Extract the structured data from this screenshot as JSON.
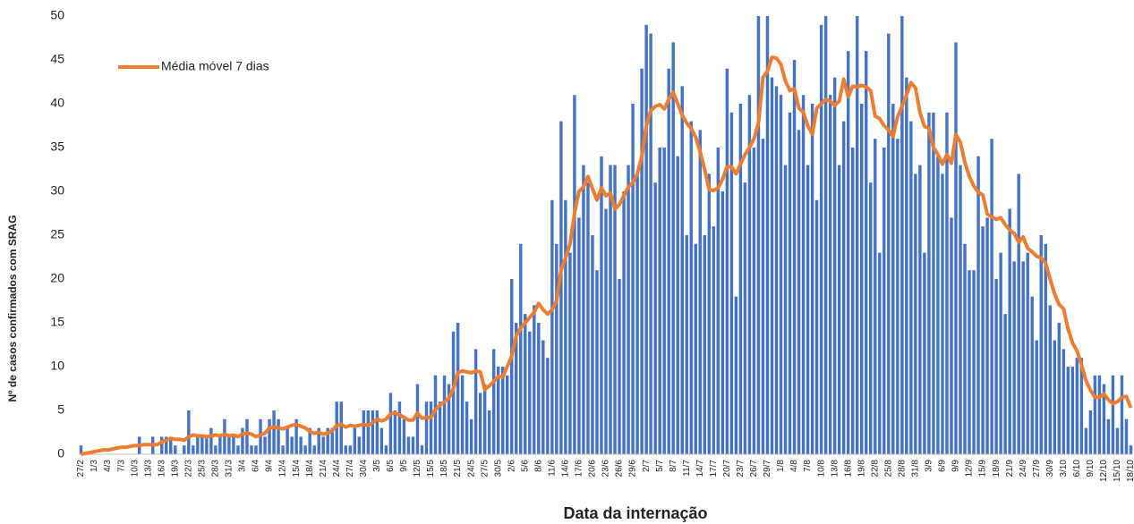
{
  "chart_data": {
    "type": "bar",
    "y_label": "Nº de casos confirmados com SRAG",
    "x_label": "Data da internação",
    "color": "#4472c4",
    "ylim": [
      0,
      50
    ],
    "yticks": [
      0,
      5,
      10,
      15,
      20,
      25,
      30,
      35,
      40,
      45,
      50
    ],
    "categories": [
      "27/2",
      null,
      null,
      "1/3",
      null,
      null,
      "4/3",
      null,
      null,
      "7/3",
      null,
      null,
      "10/3",
      null,
      null,
      "13/3",
      null,
      null,
      "16/3",
      null,
      null,
      "19/3",
      null,
      null,
      "22/3",
      null,
      null,
      "25/3",
      null,
      null,
      "28/3",
      null,
      null,
      "31/3",
      null,
      null,
      "3/4",
      null,
      null,
      "6/4",
      null,
      null,
      "9/4",
      null,
      null,
      "12/4",
      null,
      null,
      "15/4",
      null,
      null,
      "18/4",
      null,
      null,
      "21/4",
      null,
      null,
      "24/4",
      null,
      null,
      "27/4",
      null,
      null,
      "30/4",
      null,
      null,
      "3/5",
      null,
      null,
      "6/5",
      null,
      null,
      "9/5",
      null,
      null,
      "12/5",
      null,
      null,
      "15/5",
      null,
      null,
      "18/5",
      null,
      null,
      "21/5",
      null,
      null,
      "24/5",
      null,
      null,
      "27/5",
      null,
      null,
      "30/5",
      null,
      null,
      "2/6",
      null,
      null,
      "5/6",
      null,
      null,
      "8/6",
      null,
      null,
      "11/6",
      null,
      null,
      "14/6",
      null,
      null,
      "17/6",
      null,
      null,
      "20/6",
      null,
      null,
      "23/6",
      null,
      null,
      "26/6",
      null,
      null,
      "29/6",
      null,
      null,
      "2/7",
      null,
      null,
      "5/7",
      null,
      null,
      "8/7",
      null,
      null,
      "11/7",
      null,
      null,
      "14/7",
      null,
      null,
      "17/7",
      null,
      null,
      "20/7",
      null,
      null,
      "23/7",
      null,
      null,
      "26/7",
      null,
      null,
      "29/7",
      null,
      null,
      "1/8",
      null,
      null,
      "4/8",
      null,
      null,
      "7/8",
      null,
      null,
      "10/8",
      null,
      null,
      "13/8",
      null,
      null,
      "16/8",
      null,
      null,
      "19/8",
      null,
      null,
      "22/8",
      null,
      null,
      "25/8",
      null,
      null,
      "28/8",
      null,
      null,
      "31/8",
      null,
      null,
      "3/9",
      null,
      null,
      "6/9",
      null,
      null,
      "9/9",
      null,
      null,
      "12/9",
      null,
      null,
      "15/9",
      null,
      null,
      "18/9",
      null,
      null,
      "21/9",
      null,
      null,
      "24/9",
      null,
      null,
      "27/9",
      null,
      null,
      "30/9",
      null,
      null,
      "3/10",
      null,
      null,
      "6/10",
      null,
      null,
      "9/10",
      null,
      null,
      "12/10",
      null,
      null,
      "15/10",
      null,
      null,
      "18/10"
    ],
    "values": [
      1,
      0,
      0,
      0,
      0,
      0,
      0,
      0,
      0,
      0,
      0,
      0,
      0,
      2,
      0,
      0,
      2,
      0,
      2,
      2,
      2,
      1,
      0,
      1,
      5,
      1,
      2,
      2,
      2,
      3,
      1,
      2,
      4,
      2,
      2,
      1,
      3,
      4,
      1,
      1,
      4,
      2,
      4,
      5,
      4,
      1,
      3,
      2,
      4,
      2,
      1,
      3,
      1,
      3,
      2,
      3,
      3,
      6,
      6,
      1,
      1,
      3,
      2,
      5,
      5,
      5,
      5,
      3,
      1,
      7,
      5,
      6,
      4,
      2,
      2,
      8,
      1,
      6,
      6,
      9,
      6,
      9,
      8,
      14,
      15,
      9,
      6,
      4,
      12,
      7,
      8,
      5,
      12,
      10,
      10,
      9,
      20,
      15,
      24,
      16,
      14,
      17,
      15,
      13,
      11,
      29,
      24,
      38,
      29,
      23,
      41,
      27,
      33,
      31,
      25,
      21,
      34,
      28,
      33,
      33,
      20,
      30,
      33,
      40,
      32,
      44,
      49,
      48,
      31,
      35,
      35,
      44,
      47,
      34,
      42,
      25,
      38,
      24,
      37,
      25,
      32,
      26,
      35,
      30,
      44,
      39,
      18,
      40,
      31,
      41,
      35,
      50,
      36,
      50,
      43,
      42,
      41,
      33,
      39,
      45,
      37,
      41,
      33,
      40,
      29,
      49,
      50,
      41,
      43,
      33,
      38,
      46,
      35,
      50,
      40,
      46,
      31,
      36,
      23,
      35,
      48,
      40,
      36,
      50,
      43,
      38,
      32,
      33,
      23,
      39,
      39,
      34,
      32,
      39,
      27,
      47,
      33,
      24,
      21,
      21,
      34,
      26,
      27,
      36,
      20,
      23,
      16,
      28,
      22,
      32,
      22,
      23,
      18,
      13,
      25,
      24,
      17,
      13,
      15,
      12,
      10,
      10,
      11,
      11,
      3,
      5,
      9,
      9,
      8,
      4,
      9,
      3,
      9,
      4,
      1
    ],
    "line": {
      "type": "line",
      "name": "Média móvel 7 dias",
      "color": "#ed7d31",
      "values": [
        0,
        0.1,
        0.2,
        0.3,
        0.4,
        0.5,
        0.5,
        0.6,
        0.7,
        0.8,
        0.8,
        0.9,
        1,
        1,
        1.1,
        1.1,
        1.1,
        1.1,
        1.4,
        1.6,
        1.8,
        1.7,
        1.7,
        1.6,
        2,
        2.2,
        2.1,
        2.1,
        2,
        2.1,
        2.2,
        2.1,
        2.3,
        2.1,
        2.2,
        2,
        2.3,
        2.4,
        2.3,
        2,
        2.2,
        2.4,
        3,
        3.1,
        3,
        2.9,
        3.1,
        3.3,
        3.4,
        3.2,
        3,
        2.6,
        2.4,
        2.5,
        2.3,
        2.4,
        2.7,
        3.3,
        3.4,
        3.1,
        3.3,
        3.2,
        3.3,
        3.4,
        3.3,
        3.6,
        4,
        3.8,
        4,
        4.6,
        4.7,
        4.5,
        4.2,
        3.9,
        3.9,
        4.7,
        4.1,
        4.2,
        4.2,
        5.1,
        5.6,
        6,
        6.4,
        7.5,
        9.3,
        9.5,
        9.4,
        9.3,
        9.5,
        9.4,
        7.4,
        7.8,
        8.3,
        8.9,
        8.8,
        10,
        11.2,
        13.5,
        14.4,
        15,
        15.6,
        16.2,
        17.2,
        16.5,
        16,
        16.5,
        17.5,
        21,
        22.4,
        24,
        27.5,
        30,
        30.5,
        31.7,
        30.3,
        29,
        30.4,
        29.5,
        29.8,
        28,
        28.5,
        29.5,
        30.5,
        31,
        32,
        34,
        37.5,
        39.2,
        39.7,
        39.9,
        39.4,
        40.5,
        41.3,
        40,
        38.7,
        37.8,
        37.2,
        36.2,
        34.5,
        32.5,
        30.2,
        30.1,
        30.4,
        31.4,
        32.8,
        32.8,
        32,
        33.1,
        34.2,
        35,
        36,
        37.8,
        43,
        43.7,
        45.3,
        45.2,
        44.5,
        42.6,
        41.5,
        41.7,
        39.5,
        39,
        37.5,
        36.5,
        39.5,
        40,
        40.5,
        40.3,
        39.8,
        40.3,
        42.8,
        40.8,
        42,
        41.9,
        42.1,
        41.9,
        41.5,
        38.6,
        38.3,
        37.5,
        37,
        36.3,
        38.5,
        39.7,
        41,
        42.4,
        41.8,
        39,
        37.4,
        37.2,
        35,
        34.2,
        33.1,
        34.2,
        33.2,
        36.5,
        35.6,
        33.3,
        31.7,
        30.6,
        29.9,
        29.6,
        27.4,
        27.1,
        26.8,
        27,
        26.2,
        25.6,
        25.2,
        24.2,
        24.8,
        23.5,
        23.1,
        22.6,
        22.4,
        21.8,
        20,
        18.3,
        17.1,
        16.6,
        14.3,
        12.7,
        11.8,
        10.2,
        8.4,
        7.3,
        6.5,
        6.5,
        6.9,
        6.2,
        5.8,
        6,
        6.5,
        6.6,
        5.3
      ]
    }
  }
}
